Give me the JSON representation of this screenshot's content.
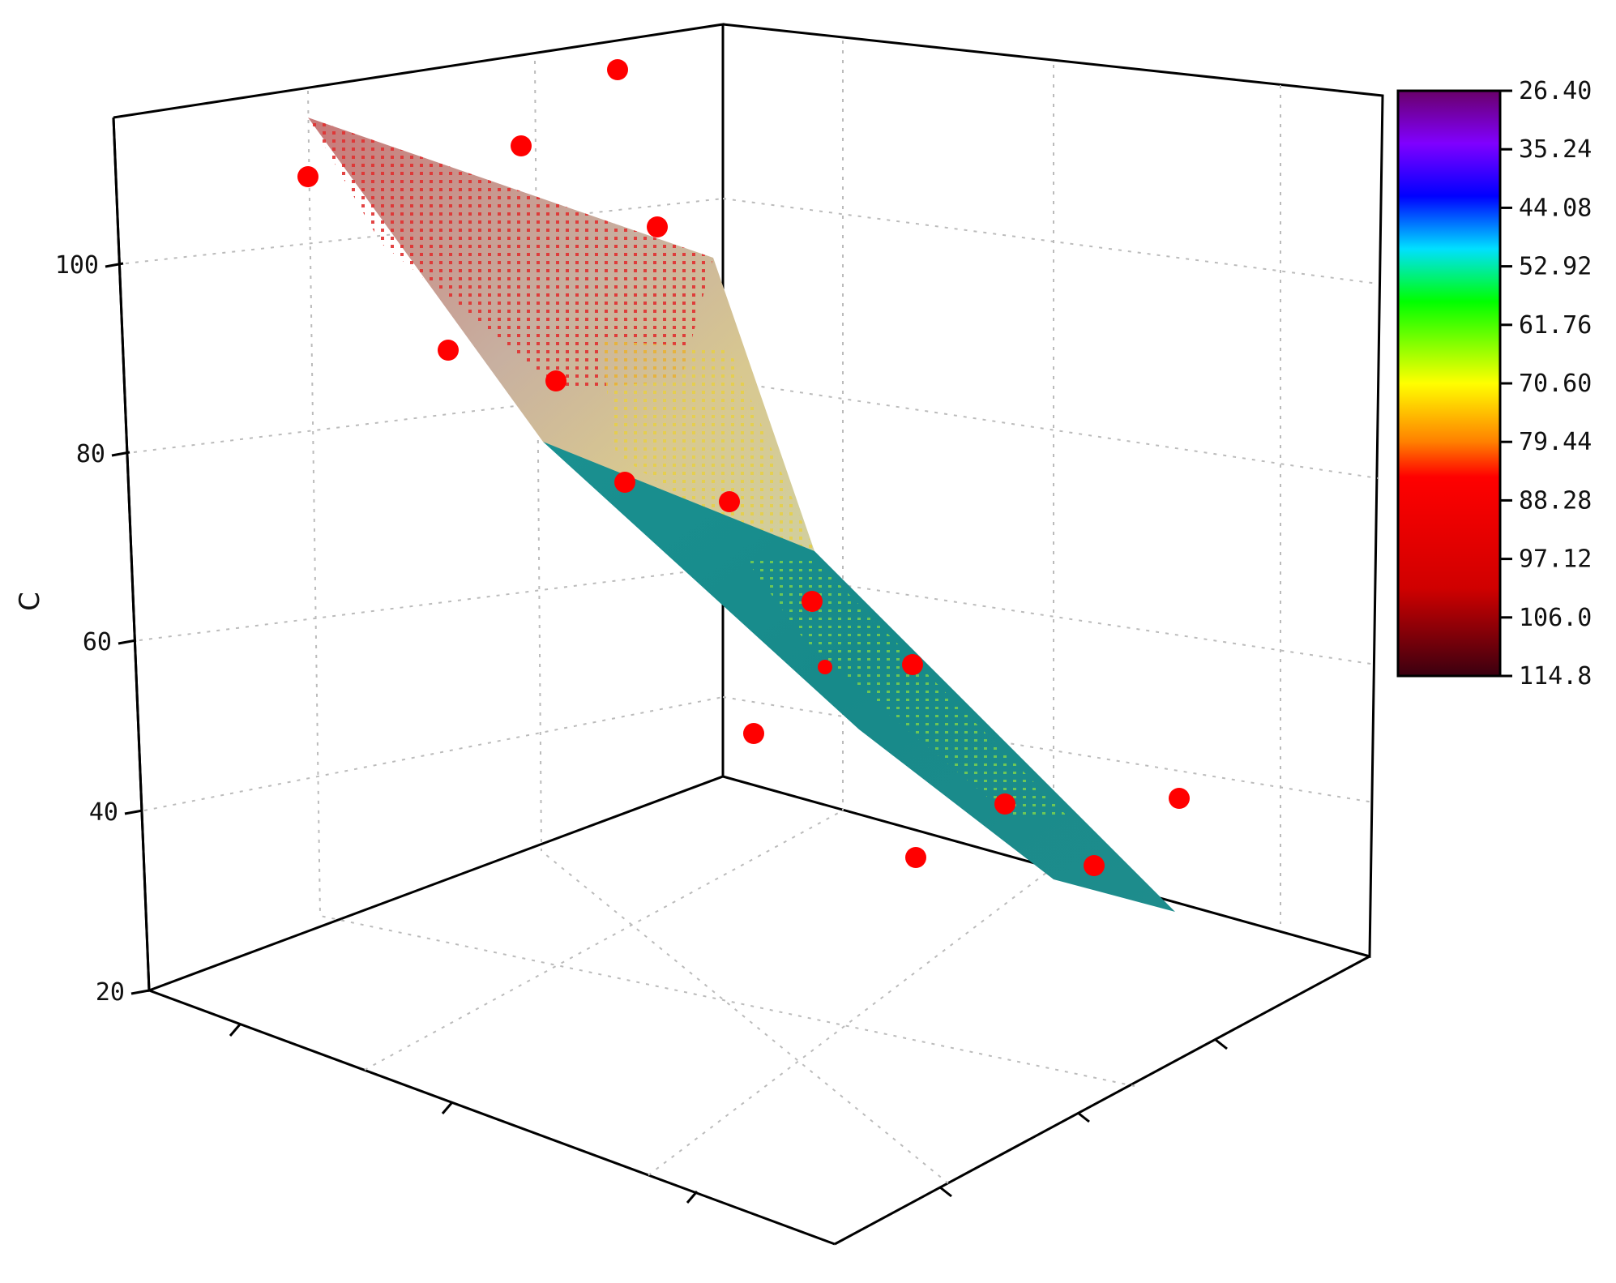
{
  "chart_data": {
    "type": "scatter",
    "subtype": "3d-surface-with-points",
    "zlabel": "C",
    "z_ticks": [
      "20",
      "40",
      "60",
      "80",
      "100"
    ],
    "z_range": [
      20,
      110
    ],
    "colorbar": {
      "labels": [
        "26.40",
        "35.24",
        "44.08",
        "52.92",
        "61.76",
        "70.60",
        "79.44",
        "88.28",
        "97.12",
        "106.0",
        "114.8"
      ],
      "min": 26.4,
      "max": 114.8,
      "colors": [
        "#2a0012",
        "#8b0000",
        "#ff0000",
        "#ff8000",
        "#ffff00",
        "#00ff00",
        "#00e0ff",
        "#0000ff",
        "#8000ff",
        "#6a006a"
      ]
    },
    "grid": true,
    "points": [
      {
        "z": 107
      },
      {
        "z": 104
      },
      {
        "z": 102
      },
      {
        "z": 98
      },
      {
        "z": 90
      },
      {
        "z": 86
      },
      {
        "z": 80
      },
      {
        "z": 79
      },
      {
        "z": 70
      },
      {
        "z": 62
      },
      {
        "z": 58
      },
      {
        "z": 55
      },
      {
        "z": 45
      },
      {
        "z": 39
      },
      {
        "z": 36
      },
      {
        "z": 34
      }
    ]
  },
  "colors": {
    "points": "#ff0000",
    "surface_lower": "#1f8c8c",
    "surface_upper": "#c8c8c8"
  }
}
